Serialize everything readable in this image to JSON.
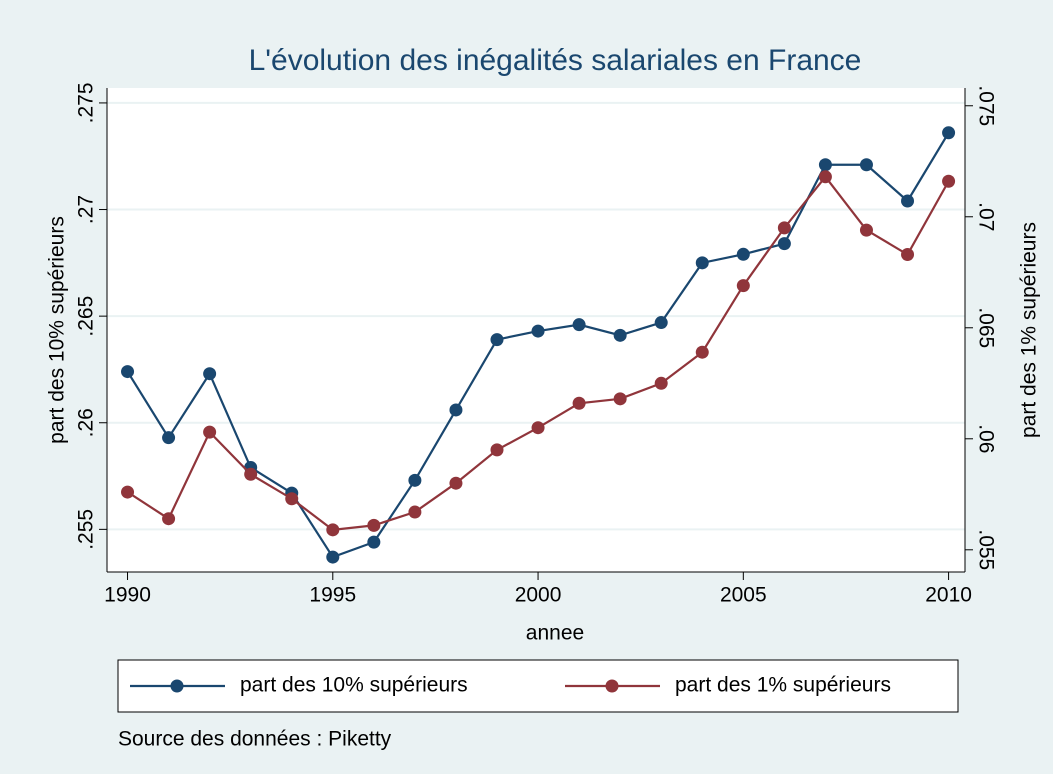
{
  "chart_data": {
    "type": "line",
    "title": "L'évolution des inégalités salariales en France",
    "x_label": "annee",
    "y_label": "part des 10% supérieurs",
    "y2_label": "part des 1% supérieurs",
    "note": "Source des données : Piketty",
    "x": [
      1990,
      1991,
      1992,
      1993,
      1994,
      1995,
      1996,
      1997,
      1998,
      1999,
      2000,
      2001,
      2002,
      2003,
      2004,
      2005,
      2006,
      2007,
      2008,
      2009,
      2010
    ],
    "xlim": [
      1989.5,
      2010.4
    ],
    "xticks": [
      1990,
      1995,
      2000,
      2005,
      2010
    ],
    "ylim": [
      0.253,
      0.2757
    ],
    "yticks": [
      {
        "value": 0.255,
        "label": ".255"
      },
      {
        "value": 0.26,
        "label": ".26"
      },
      {
        "value": 0.265,
        "label": ".265"
      },
      {
        "value": 0.27,
        "label": ".27"
      },
      {
        "value": 0.275,
        "label": ".275"
      }
    ],
    "y2lim": [
      0.054,
      0.0758
    ],
    "y2ticks": [
      {
        "value": 0.055,
        "label": ".055"
      },
      {
        "value": 0.06,
        "label": ".06"
      },
      {
        "value": 0.065,
        "label": ".065"
      },
      {
        "value": 0.07,
        "label": ".07"
      },
      {
        "value": 0.075,
        "label": ".075"
      }
    ],
    "grid": true,
    "series": [
      {
        "name": "part des 10% supérieurs",
        "color": "#1a476f",
        "values": [
          0.2624,
          0.2593,
          0.2623,
          0.2579,
          0.2567,
          0.2537,
          0.2544,
          0.2573,
          0.2606,
          0.2639,
          0.2643,
          0.2646,
          0.2641,
          0.2647,
          0.2675,
          0.2679,
          0.2684,
          0.2721,
          0.2721,
          0.2704,
          0.2736
        ]
      },
      {
        "name": "part des 1% supérieurs",
        "color": "#90353b",
        "axis": "y2",
        "values": [
          0.0576,
          0.0564,
          0.0603,
          0.0584,
          0.0573,
          0.0559,
          0.0561,
          0.0567,
          0.058,
          0.0595,
          0.0605,
          0.0616,
          0.0618,
          0.0625,
          0.0639,
          0.0669,
          0.0695,
          0.0718,
          0.0694,
          0.0683,
          0.0716
        ]
      }
    ]
  }
}
